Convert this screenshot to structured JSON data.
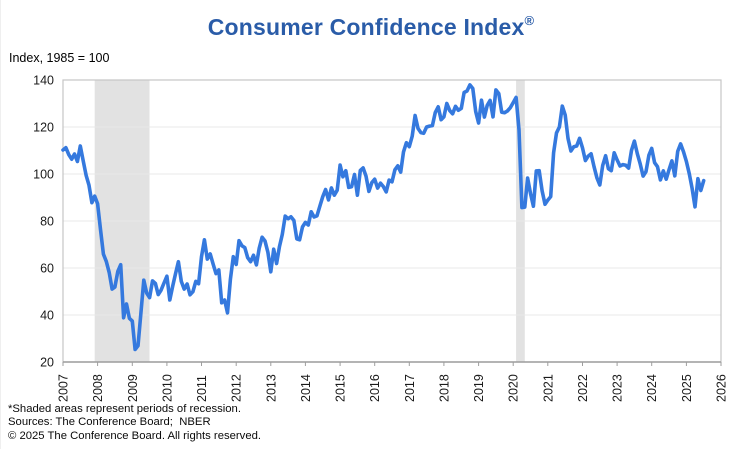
{
  "header": {
    "title": "Consumer Confidence Index",
    "registered_mark": "®",
    "title_color": "#2a5ca8"
  },
  "footer": {
    "lines": [
      "*Shaded areas represent periods of recession.",
      "Sources: The Conference Board;  NBER",
      "© 2025 The Conference Board. All rights reserved."
    ]
  },
  "chart_data": {
    "type": "line",
    "title": "Consumer Confidence Index®",
    "subtitle": "Index, 1985 = 100",
    "legend": "none",
    "grid": "horizontal",
    "line_color": "#3579de",
    "recession_shading_color": "#e2e2e2",
    "frame_color": "#c6c6c6",
    "axis_color": "#9e9e9e",
    "gridline_color": "#e8e8e8",
    "x_axis": {
      "range": [
        2007,
        2026
      ],
      "tick_years": [
        2007,
        2008,
        2009,
        2010,
        2011,
        2012,
        2013,
        2014,
        2015,
        2016,
        2017,
        2018,
        2019,
        2020,
        2021,
        2022,
        2023,
        2024,
        2025,
        2026
      ],
      "label_rotation_deg": -90
    },
    "y_axis": {
      "range": [
        20,
        140
      ],
      "ticks": [
        20,
        40,
        60,
        80,
        100,
        120,
        140
      ]
    },
    "recession_bands": [
      {
        "start_year_frac": 2007.9167,
        "end_year_frac": 2009.5
      },
      {
        "start_year_frac": 2020.0833,
        "end_year_frac": 2020.3333
      }
    ],
    "series": [
      {
        "name": "Consumer Confidence Index",
        "start": "2007-01",
        "frequency": "monthly",
        "values": [
          110.2,
          111.2,
          108.2,
          106.3,
          108.5,
          105.3,
          111.9,
          105.6,
          99.5,
          95.2,
          87.8,
          90.6,
          87.3,
          76.4,
          65.9,
          62.8,
          58.1,
          51.0,
          51.9,
          58.5,
          61.4,
          38.8,
          44.7,
          38.6,
          37.4,
          25.3,
          26.9,
          40.8,
          54.8,
          49.3,
          47.4,
          54.5,
          53.4,
          48.7,
          50.6,
          53.6,
          56.5,
          46.4,
          52.3,
          57.7,
          62.7,
          54.3,
          51.0,
          53.2,
          48.6,
          49.9,
          54.3,
          53.3,
          64.8,
          72.0,
          63.8,
          66.0,
          61.7,
          57.6,
          59.2,
          45.2,
          46.4,
          40.9,
          55.2,
          64.8,
          61.5,
          71.6,
          69.5,
          68.7,
          64.4,
          62.7,
          65.4,
          61.3,
          68.4,
          73.1,
          71.5,
          66.7,
          58.4,
          68.0,
          61.9,
          69.0,
          74.3,
          82.1,
          81.0,
          81.8,
          80.2,
          72.4,
          72.0,
          77.5,
          79.4,
          78.3,
          83.9,
          81.7,
          82.2,
          86.4,
          90.3,
          93.4,
          89.0,
          94.1,
          91.0,
          93.1,
          103.8,
          98.8,
          101.4,
          94.3,
          94.6,
          99.8,
          91.0,
          101.5,
          102.6,
          99.1,
          92.6,
          96.3,
          97.8,
          94.0,
          96.1,
          94.7,
          92.4,
          97.4,
          96.7,
          101.8,
          103.5,
          100.8,
          109.4,
          113.3,
          111.6,
          116.1,
          124.9,
          119.4,
          117.6,
          117.3,
          120.0,
          120.4,
          120.6,
          126.2,
          128.6,
          123.1,
          124.3,
          130.0,
          127.0,
          125.6,
          128.8,
          127.1,
          127.9,
          134.7,
          135.3,
          137.9,
          136.4,
          126.6,
          121.7,
          131.4,
          124.2,
          129.2,
          131.3,
          124.3,
          135.8,
          134.2,
          126.3,
          126.1,
          126.8,
          128.2,
          130.4,
          132.6,
          118.8,
          85.7,
          85.9,
          98.3,
          91.7,
          86.3,
          101.3,
          101.4,
          92.9,
          87.1,
          88.9,
          90.4,
          109.0,
          117.5,
          120.0,
          128.9,
          125.1,
          115.2,
          109.8,
          111.6,
          111.9,
          115.2,
          111.1,
          105.7,
          107.6,
          108.6,
          103.2,
          98.4,
          95.3,
          103.6,
          107.8,
          102.2,
          101.4,
          109.0,
          106.0,
          103.4,
          104.0,
          103.7,
          102.5,
          110.1,
          114.0,
          108.7,
          104.3,
          99.1,
          101.0,
          108.0,
          110.9,
          104.8,
          103.1,
          97.5,
          101.3,
          97.8,
          101.9,
          105.6,
          99.2,
          109.6,
          112.8,
          109.5,
          105.3,
          100.1,
          93.9,
          86.0,
          98.0,
          93.0,
          97.2
        ]
      }
    ]
  }
}
